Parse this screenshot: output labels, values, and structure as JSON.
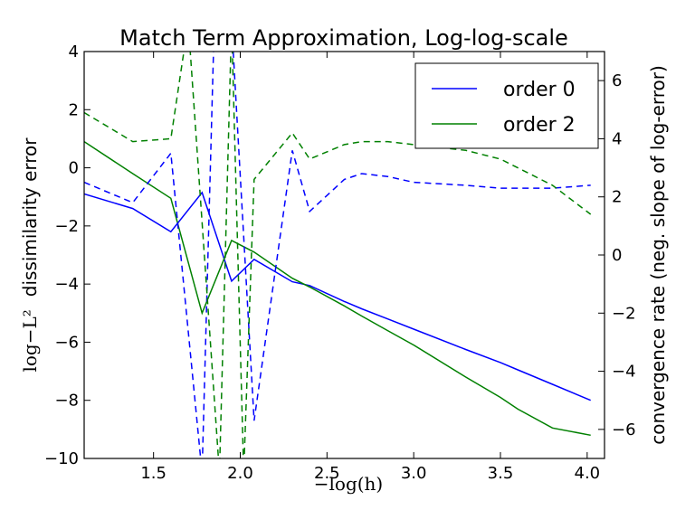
{
  "chart_data": {
    "type": "line",
    "title": "Match Term Approximation, Log-log-scale",
    "xlabel": "−log(h)",
    "ylabel_left_math": "log−L²",
    "ylabel_left_text": "dissimilarity error",
    "ylabel_right": "convergence rate (neg. slope of log-error)",
    "xlim": [
      1.1,
      4.1
    ],
    "ylim_left": [
      -10,
      4
    ],
    "ylim_right": [
      -7,
      7
    ],
    "x_ticks": [
      "1.5",
      "2.0",
      "2.5",
      "3.0",
      "3.5",
      "4.0"
    ],
    "y_left_ticks": [
      "−10",
      "−8",
      "−6",
      "−4",
      "−2",
      "0",
      "2",
      "4"
    ],
    "y_right_ticks": [
      "−6",
      "−4",
      "−2",
      "0",
      "2",
      "4",
      "6"
    ],
    "legend_position": "top-right",
    "colors": {
      "order0": "#0000ff",
      "order2": "#008000"
    },
    "series": [
      {
        "name": "order 0",
        "axis": "left",
        "style": "solid",
        "x": [
          1.1,
          1.38,
          1.6,
          1.78,
          1.95,
          2.08,
          2.3,
          2.4,
          2.6,
          2.7,
          2.85,
          3.0,
          3.3,
          3.5,
          3.6,
          3.8,
          4.02
        ],
        "y": [
          -0.9,
          -1.4,
          -2.2,
          -0.85,
          -3.9,
          -3.15,
          -3.92,
          -4.05,
          -4.6,
          -4.85,
          -5.2,
          -5.55,
          -6.25,
          -6.7,
          -6.95,
          -7.45,
          -8.0
        ]
      },
      {
        "name": "order 2",
        "axis": "left",
        "style": "solid",
        "x": [
          1.1,
          1.38,
          1.6,
          1.78,
          1.95,
          2.08,
          2.3,
          2.4,
          2.6,
          2.7,
          2.85,
          3.0,
          3.3,
          3.5,
          3.6,
          3.8,
          4.02
        ],
        "y": [
          0.9,
          -0.2,
          -1.05,
          -5.0,
          -2.5,
          -2.9,
          -3.8,
          -4.1,
          -4.75,
          -5.1,
          -5.6,
          -6.1,
          -7.2,
          -7.9,
          -8.3,
          -8.95,
          -9.2
        ]
      },
      {
        "axis": "right",
        "style": "dashed",
        "color_of": "order 0",
        "x": [
          1.1,
          1.38,
          1.6,
          1.78,
          1.85,
          1.95,
          2.08,
          2.3,
          2.4,
          2.6,
          2.7,
          2.85,
          3.0,
          3.3,
          3.5,
          3.6,
          3.8,
          4.02
        ],
        "y": [
          2.5,
          1.8,
          3.5,
          -7.5,
          8.0,
          8.0,
          -5.7,
          3.6,
          1.5,
          2.6,
          2.8,
          2.7,
          2.5,
          2.4,
          2.3,
          2.3,
          2.3,
          2.4
        ]
      },
      {
        "axis": "right",
        "style": "dashed",
        "color_of": "order 2",
        "x": [
          1.1,
          1.38,
          1.6,
          1.7,
          1.88,
          1.95,
          2.02,
          2.08,
          2.3,
          2.4,
          2.6,
          2.7,
          2.85,
          3.0,
          3.3,
          3.5,
          3.6,
          3.8,
          4.02
        ],
        "y": [
          4.9,
          3.9,
          4.0,
          8.0,
          -7.5,
          8.0,
          -7.5,
          2.6,
          4.2,
          3.3,
          3.8,
          3.9,
          3.9,
          3.8,
          3.6,
          3.3,
          3.0,
          2.4,
          1.4
        ]
      }
    ]
  }
}
